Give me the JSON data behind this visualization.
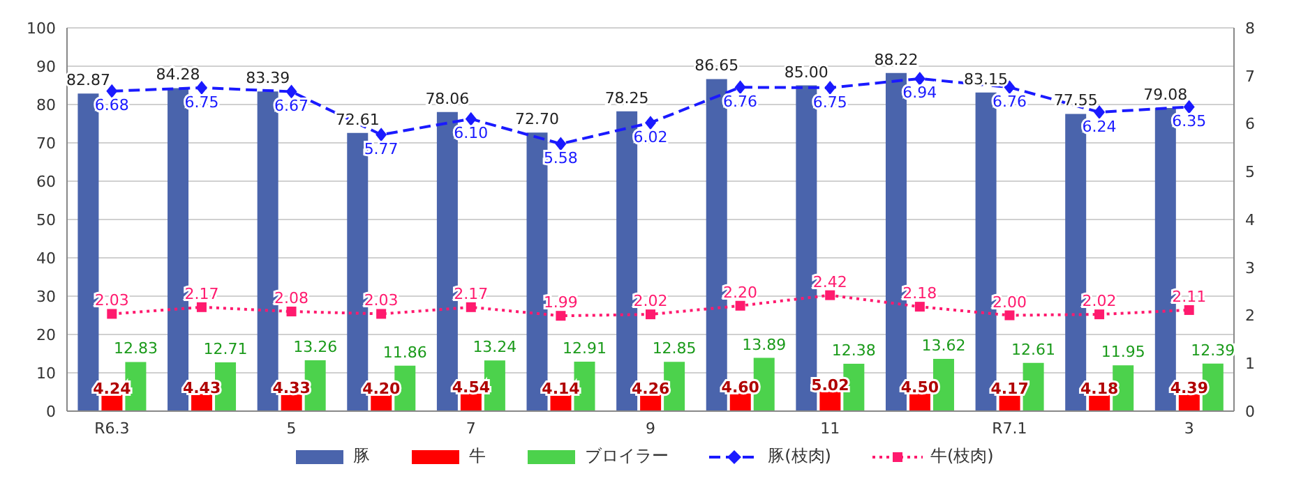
{
  "chart_data": {
    "type": "bar",
    "categories": [
      "R6.3",
      null,
      "5",
      null,
      "7",
      null,
      "9",
      null,
      "11",
      null,
      "R7.1",
      null,
      "3"
    ],
    "series": [
      {
        "name": "豚",
        "color": "#4a64ac",
        "values": [
          82.87,
          84.28,
          83.39,
          72.61,
          78.06,
          72.7,
          78.25,
          86.65,
          85.0,
          88.22,
          83.15,
          77.55,
          79.08
        ],
        "value_labels": [
          "82.87",
          "84.28",
          "83.39",
          "72.61",
          "78.06",
          "72.70",
          "78.25",
          "86.65",
          "85.00",
          "88.22",
          "83.15",
          "77.55",
          "79.08"
        ]
      },
      {
        "name": "牛",
        "color": "#ff0000",
        "values": [
          4.24,
          4.43,
          4.33,
          4.2,
          4.54,
          4.14,
          4.26,
          4.6,
          5.02,
          4.5,
          4.17,
          4.18,
          4.39
        ],
        "value_labels": [
          "4.24",
          "4.43",
          "4.33",
          "4.20",
          "4.54",
          "4.14",
          "4.26",
          "4.60",
          "5.02",
          "4.50",
          "4.17",
          "4.18",
          "4.39"
        ]
      },
      {
        "name": "ブロイラー",
        "color": "#4cd24c",
        "values": [
          12.83,
          12.71,
          13.26,
          11.86,
          13.24,
          12.91,
          12.85,
          13.89,
          12.38,
          13.62,
          12.61,
          11.95,
          12.39
        ],
        "value_labels": [
          "12.83",
          "12.71",
          "13.26",
          "11.86",
          "13.24",
          "12.91",
          "12.85",
          "13.89",
          "12.38",
          "13.62",
          "12.61",
          "11.95",
          "12.39"
        ]
      },
      {
        "name": "豚(枝肉)",
        "type": "line",
        "axis": "y2",
        "color": "#1a1aff",
        "marker": "diamond",
        "line_style": "dashed",
        "values": [
          6.68,
          6.75,
          6.67,
          5.77,
          6.1,
          5.58,
          6.02,
          6.76,
          6.75,
          6.94,
          6.76,
          6.24,
          6.35
        ],
        "value_labels": [
          "6.68",
          "6.75",
          "6.67",
          "5.77",
          "6.10",
          "5.58",
          "6.02",
          "6.76",
          "6.75",
          "6.94",
          "6.76",
          "6.24",
          "6.35"
        ]
      },
      {
        "name": "牛(枝肉)",
        "type": "line",
        "axis": "y2",
        "color": "#ff1a6e",
        "marker": "square",
        "line_style": "dotted",
        "values": [
          2.03,
          2.17,
          2.08,
          2.03,
          2.17,
          1.99,
          2.02,
          2.2,
          2.42,
          2.18,
          2.0,
          2.02,
          2.11
        ],
        "value_labels": [
          "2.03",
          "2.17",
          "2.08",
          "2.03",
          "2.17",
          "1.99",
          "2.02",
          "2.20",
          "2.42",
          "2.18",
          "2.00",
          "2.02",
          "2.11"
        ]
      }
    ],
    "ylim": [
      0,
      100
    ],
    "yticks": [
      0,
      10,
      20,
      30,
      40,
      50,
      60,
      70,
      80,
      90,
      100
    ],
    "y2lim": [
      0,
      8
    ],
    "y2ticks": [
      0,
      1,
      2,
      3,
      4,
      5,
      6,
      7,
      8
    ],
    "grid": "y",
    "legend": "bottom"
  }
}
